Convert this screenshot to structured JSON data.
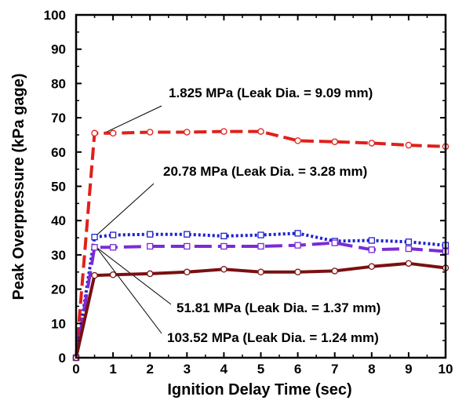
{
  "chart_data": {
    "type": "line",
    "xlabel": "Ignition Delay Time (sec)",
    "ylabel": "Peak Overpressure  (kPa gage)",
    "xlim": [
      0,
      10
    ],
    "ylim": [
      0,
      100
    ],
    "x_ticks": [
      "0",
      "1",
      "2",
      "3",
      "4",
      "5",
      "6",
      "7",
      "8",
      "9",
      "10"
    ],
    "y_ticks": [
      "0",
      "10",
      "20",
      "30",
      "40",
      "50",
      "60",
      "70",
      "80",
      "90",
      "100"
    ],
    "grid": false,
    "legend": "none",
    "series": [
      {
        "name": "1.825 MPa (Leak Dia. = 9.09 mm)",
        "color": "#e0201a",
        "dash": "dashed",
        "marker": "circle",
        "x": [
          0,
          0.5,
          1,
          2,
          3,
          4,
          5,
          6,
          7,
          8,
          9,
          10
        ],
        "y": [
          0,
          65.5,
          65.5,
          65.8,
          65.8,
          66.0,
          66.0,
          63.3,
          63.0,
          62.6,
          62.0,
          61.6
        ]
      },
      {
        "name": "20.78 MPa  (Leak Dia. = 3.28 mm)",
        "color": "#1f1fcf",
        "dash": "dotted",
        "marker": "square",
        "x": [
          0,
          0.5,
          1,
          2,
          3,
          4,
          5,
          6,
          7,
          8,
          9,
          10
        ],
        "y": [
          0,
          35.2,
          35.8,
          36.0,
          36.0,
          35.5,
          35.8,
          36.3,
          34.0,
          34.2,
          33.8,
          32.8
        ]
      },
      {
        "name": "51.81 MPa (Leak Dia. = 1.37 mm)",
        "color": "#7a2bd6",
        "dash": "longdash",
        "marker": "square",
        "x": [
          0,
          0.5,
          1,
          2,
          3,
          4,
          5,
          6,
          7,
          8,
          9,
          10
        ],
        "y": [
          0,
          32.2,
          32.2,
          32.5,
          32.5,
          32.5,
          32.5,
          32.8,
          33.5,
          31.5,
          31.8,
          31.0
        ]
      },
      {
        "name": "103.52 MPa (Leak Dia. = 1.24 mm)",
        "color": "#7a1010",
        "dash": "solid",
        "marker": "circle",
        "x": [
          0,
          0.5,
          1,
          2,
          3,
          4,
          5,
          6,
          7,
          8,
          9,
          10
        ],
        "y": [
          0,
          24.0,
          24.2,
          24.5,
          25.0,
          25.8,
          25.0,
          25.0,
          25.3,
          26.6,
          27.5,
          26.2
        ]
      }
    ]
  }
}
